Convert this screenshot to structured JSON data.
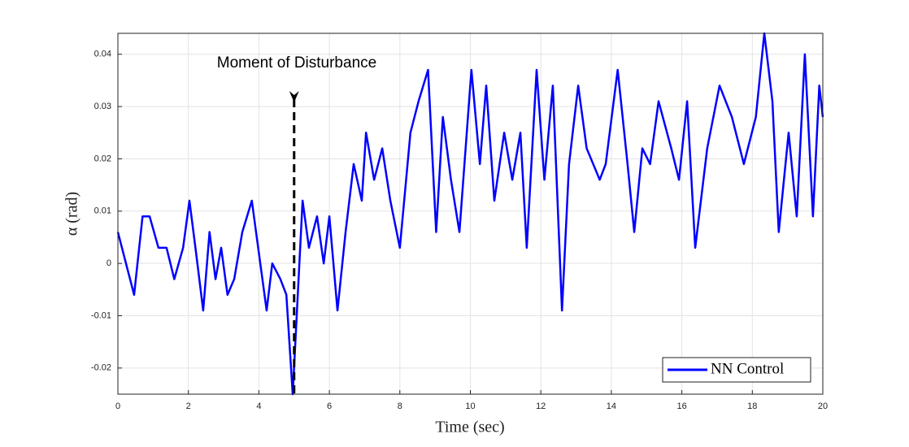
{
  "chart_data": {
    "type": "line",
    "xlabel": "Time (sec)",
    "ylabel": "α (rad)",
    "annotation": {
      "text": "Moment of Disturbance",
      "x": 5
    },
    "x": [
      0,
      0.23,
      0.46,
      0.7,
      0.9,
      1.15,
      1.38,
      1.6,
      1.85,
      2.03,
      2.2,
      2.42,
      2.6,
      2.77,
      2.93,
      3.11,
      3.3,
      3.53,
      3.8,
      4.04,
      4.22,
      4.38,
      4.61,
      4.78,
      4.96,
      5.24,
      5.42,
      5.65,
      5.84,
      6.0,
      6.23,
      6.46,
      6.69,
      6.92,
      7.04,
      7.27,
      7.5,
      7.73,
      8.0,
      8.3,
      8.53,
      8.8,
      9.03,
      9.22,
      9.45,
      9.69,
      10.03,
      10.27,
      10.45,
      10.68,
      10.96,
      11.19,
      11.42,
      11.6,
      11.88,
      12.1,
      12.34,
      12.6,
      12.8,
      13.06,
      13.3,
      13.67,
      13.84,
      14.18,
      14.46,
      14.65,
      14.88,
      15.1,
      15.34,
      15.7,
      15.92,
      16.15,
      16.38,
      16.72,
      17.07,
      17.42,
      17.76,
      18.1,
      18.34,
      18.57,
      18.75,
      19.03,
      19.26,
      19.49,
      19.72,
      19.9,
      20
    ],
    "series": [
      {
        "name": "NN Control",
        "color": "#0000ff",
        "values": [
          0.006,
          0.0,
          -0.006,
          0.009,
          0.009,
          0.003,
          0.003,
          -0.003,
          0.003,
          0.012,
          0.003,
          -0.009,
          0.006,
          -0.003,
          0.003,
          -0.006,
          -0.003,
          0.006,
          0.012,
          0.0,
          -0.009,
          0.0,
          -0.003,
          -0.006,
          -0.025,
          0.012,
          0.003,
          0.009,
          0.0,
          0.009,
          -0.009,
          0.006,
          0.019,
          0.012,
          0.025,
          0.016,
          0.022,
          0.012,
          0.003,
          0.025,
          0.031,
          0.037,
          0.006,
          0.028,
          0.016,
          0.006,
          0.037,
          0.019,
          0.034,
          0.012,
          0.025,
          0.016,
          0.025,
          0.003,
          0.037,
          0.016,
          0.034,
          -0.009,
          0.019,
          0.034,
          0.022,
          0.016,
          0.019,
          0.037,
          0.019,
          0.006,
          0.022,
          0.019,
          0.031,
          0.022,
          0.016,
          0.031,
          0.003,
          0.022,
          0.034,
          0.028,
          0.019,
          0.028,
          0.044,
          0.031,
          0.006,
          0.025,
          0.009,
          0.04,
          0.009,
          0.034,
          0.028
        ]
      }
    ],
    "xlim": [
      0,
      20
    ],
    "xticks": [
      0,
      2,
      4,
      6,
      8,
      10,
      12,
      14,
      16,
      18,
      20
    ],
    "ylim": [
      -0.025,
      0.044
    ],
    "yticks": [
      -0.02,
      -0.01,
      0,
      0.01,
      0.02,
      0.03,
      0.04
    ],
    "grid": true,
    "legend": "lower right"
  }
}
